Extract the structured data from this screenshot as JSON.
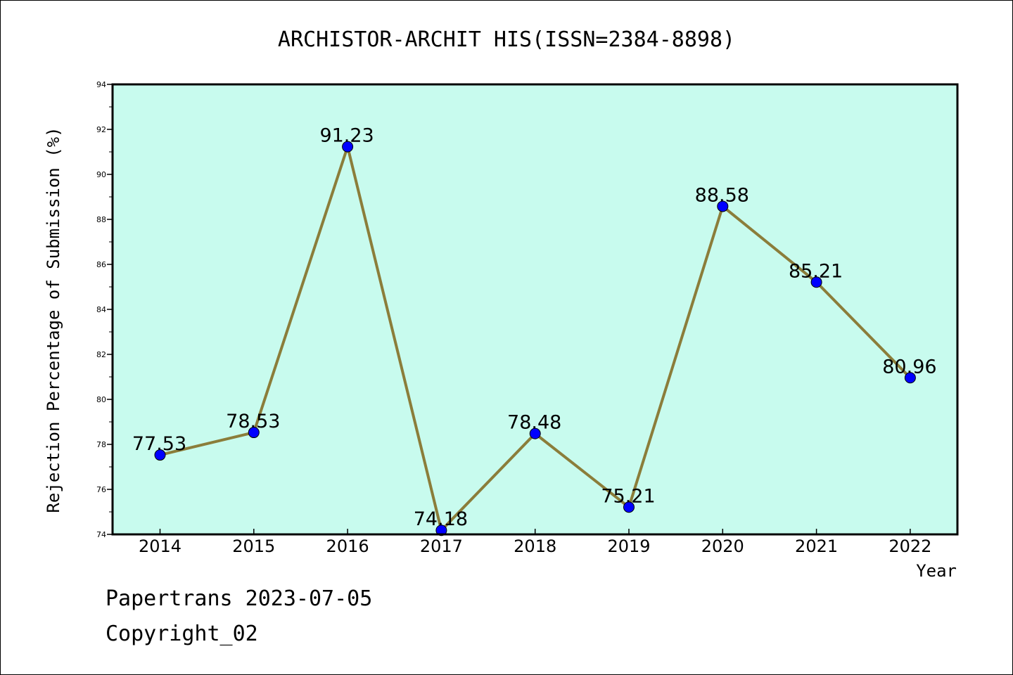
{
  "chart_data": {
    "type": "line",
    "title": "ARCHISTOR-ARCHIT HIS(ISSN=2384-8898)",
    "xlabel": "Year",
    "ylabel": "Rejection Percentage of Submission (%)",
    "x": [
      "2014",
      "2015",
      "2016",
      "2017",
      "2018",
      "2019",
      "2020",
      "2021",
      "2022"
    ],
    "values": [
      77.53,
      78.53,
      91.23,
      74.18,
      78.48,
      75.21,
      88.58,
      85.21,
      80.96
    ],
    "data_labels": [
      "77.53",
      "78.53",
      "91.23",
      "74.18",
      "78.48",
      "75.21",
      "88.58",
      "85.21",
      "80.96"
    ],
    "ylim": [
      74,
      94
    ],
    "yticks": [
      74,
      76,
      78,
      80,
      82,
      84,
      86,
      88,
      90,
      92,
      94
    ],
    "grid": false,
    "legend": "none",
    "colors": {
      "plot_background": "#c8fbee",
      "line": "#8b7d3a",
      "marker": "#0000ff"
    }
  },
  "footer": {
    "line1": "Papertrans 2023-07-05",
    "line2": "Copyright_02"
  }
}
